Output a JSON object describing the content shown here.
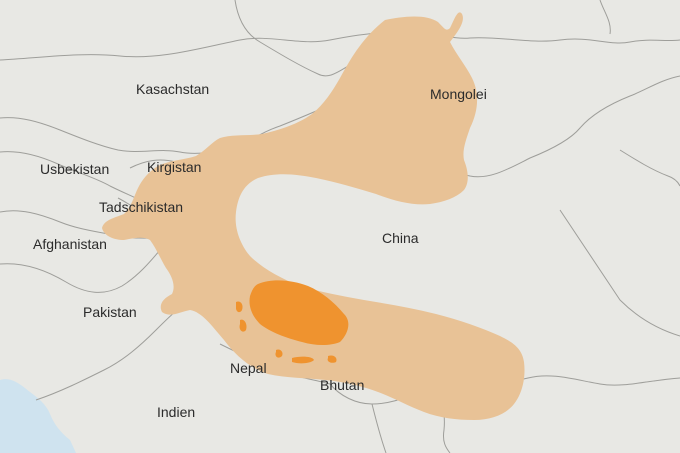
{
  "map": {
    "labels": {
      "kasachstan": "Kasachstan",
      "mongolei": "Mongolei",
      "usbekistan": "Usbekistan",
      "kirgistan": "Kirgistan",
      "tadschikistan": "Tadschikistan",
      "afghanistan": "Afghanistan",
      "china": "China",
      "pakistan": "Pakistan",
      "nepal": "Nepal",
      "bhutan": "Bhutan",
      "indien": "Indien"
    },
    "colors": {
      "land": "#e8e8e4",
      "water": "#cfe3ef",
      "border": "#9e9e9a",
      "range": "#e8c296",
      "core_range": "#ef932f"
    }
  }
}
